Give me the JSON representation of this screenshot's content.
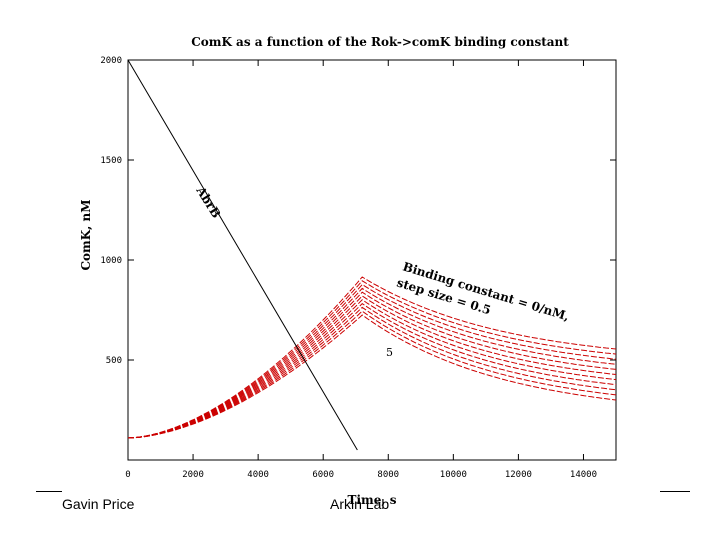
{
  "chart_data": {
    "type": "line",
    "title": "ComK as a function of the Rok->comK binding constant",
    "xlabel": "Time, s",
    "ylabel": "ComK, nM",
    "xlim": [
      0,
      15000
    ],
    "ylim": [
      0,
      2000
    ],
    "x_ticks": [
      "0",
      "2000",
      "4000",
      "6000",
      "8000",
      "10000",
      "12000",
      "14000"
    ],
    "y_ticks": [
      "2000",
      "1500",
      "1000",
      "500"
    ],
    "annotations": {
      "abrb": "AbrB",
      "binding_line1": "Binding constant = 0/nM,",
      "binding_line2": "step size = 0.5",
      "five": "5"
    },
    "series": [
      {
        "name": "AbrB",
        "color": "#000000",
        "x": [
          0,
          7050
        ],
        "y": [
          2000,
          50
        ]
      },
      {
        "name": "ComK family",
        "color": "#cc0000",
        "count": 11,
        "start": 110,
        "peak_time": 7200,
        "peak_top": 915,
        "peak_bottom": 725,
        "end_top": 555,
        "end_bottom": 300,
        "end_time": 15000
      }
    ]
  },
  "footer": {
    "left": "Gavin Price",
    "center": "Arkin Lab"
  }
}
